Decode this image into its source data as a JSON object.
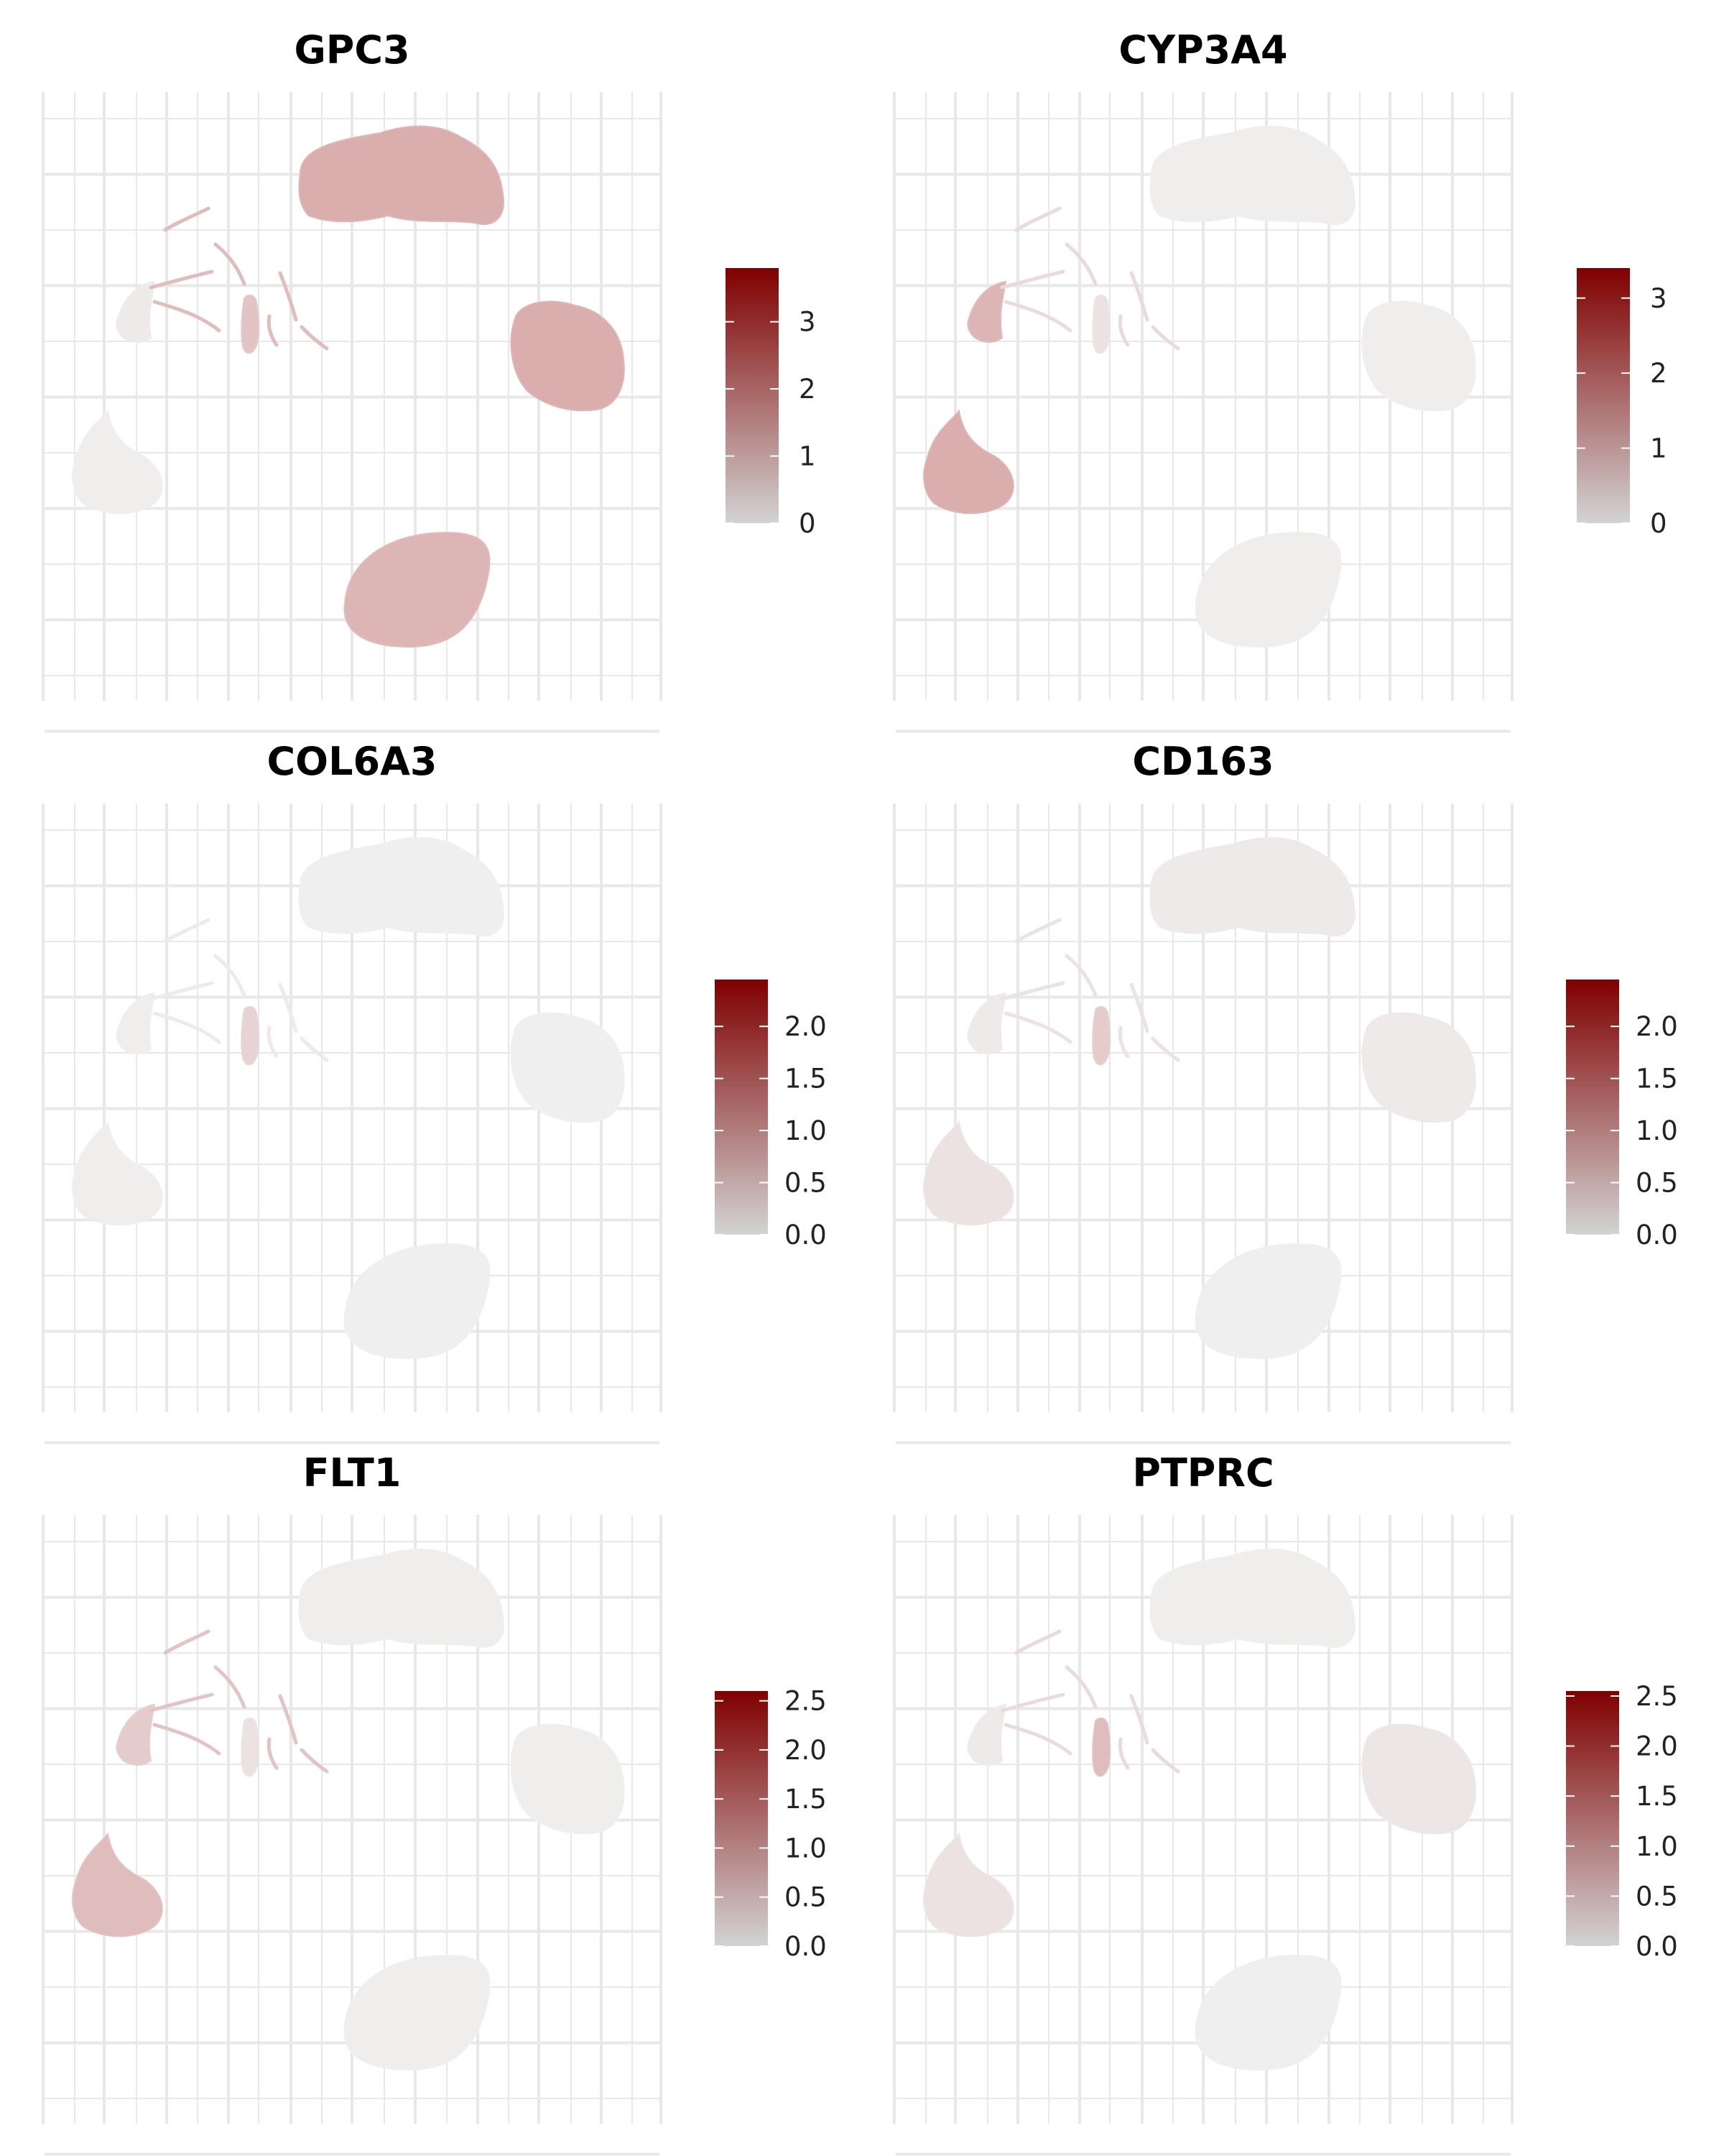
{
  "figure": {
    "colors": {
      "low": "#d3d3d3",
      "high": "#800000",
      "grid": "#e8e8e8",
      "background": "#ffffff"
    }
  },
  "chart_data": [
    {
      "type": "scatter",
      "title": "GPC3",
      "legend": {
        "range": [
          0,
          3.8
        ],
        "ticks": [
          0,
          1,
          2,
          3
        ],
        "tick_labels": [
          "0",
          "1",
          "2",
          "3"
        ]
      },
      "clusters": [
        {
          "name": "top",
          "expression": 0.9
        },
        {
          "name": "right",
          "expression": 0.9
        },
        {
          "name": "bottom",
          "expression": 0.8
        },
        {
          "name": "left",
          "expression": 0.05
        },
        {
          "name": "upper-left",
          "expression": 0.1
        },
        {
          "name": "center-small",
          "expression": 0.6
        },
        {
          "name": "strands",
          "expression": 0.7
        }
      ]
    },
    {
      "type": "scatter",
      "title": "CYP3A4",
      "legend": {
        "range": [
          0,
          3.4
        ],
        "ticks": [
          0,
          1,
          2,
          3
        ],
        "tick_labels": [
          "0",
          "1",
          "2",
          "3"
        ]
      },
      "clusters": [
        {
          "name": "top",
          "expression": 0.05
        },
        {
          "name": "right",
          "expression": 0.05
        },
        {
          "name": "bottom",
          "expression": 0.05
        },
        {
          "name": "left",
          "expression": 0.9
        },
        {
          "name": "upper-left",
          "expression": 0.8
        },
        {
          "name": "center-small",
          "expression": 0.2
        },
        {
          "name": "strands",
          "expression": 0.3
        }
      ]
    },
    {
      "type": "scatter",
      "title": "COL6A3",
      "legend": {
        "range": [
          0,
          2.45
        ],
        "ticks": [
          0,
          0.5,
          1,
          1.5,
          2
        ],
        "tick_labels": [
          "0.0",
          "0.5",
          "1.0",
          "1.5",
          "2.0"
        ]
      },
      "clusters": [
        {
          "name": "top",
          "expression": 0.03
        },
        {
          "name": "right",
          "expression": 0.03
        },
        {
          "name": "bottom",
          "expression": 0.03
        },
        {
          "name": "left",
          "expression": 0.05
        },
        {
          "name": "upper-left",
          "expression": 0.05
        },
        {
          "name": "center-small",
          "expression": 0.4
        },
        {
          "name": "strands",
          "expression": 0.1
        }
      ]
    },
    {
      "type": "scatter",
      "title": "CD163",
      "legend": {
        "range": [
          0,
          2.45
        ],
        "ticks": [
          0,
          0.5,
          1,
          1.5,
          2
        ],
        "tick_labels": [
          "0.0",
          "0.5",
          "1.0",
          "1.5",
          "2.0"
        ]
      },
      "clusters": [
        {
          "name": "top",
          "expression": 0.1
        },
        {
          "name": "right",
          "expression": 0.1
        },
        {
          "name": "bottom",
          "expression": 0.03
        },
        {
          "name": "left",
          "expression": 0.2
        },
        {
          "name": "upper-left",
          "expression": 0.1
        },
        {
          "name": "center-small",
          "expression": 0.5
        },
        {
          "name": "strands",
          "expression": 0.2
        }
      ]
    },
    {
      "type": "scatter",
      "title": "FLT1",
      "legend": {
        "range": [
          0,
          2.6
        ],
        "ticks": [
          0,
          0.5,
          1,
          1.5,
          2,
          2.5
        ],
        "tick_labels": [
          "0.0",
          "0.5",
          "1.0",
          "1.5",
          "2.0",
          "2.5"
        ]
      },
      "clusters": [
        {
          "name": "top",
          "expression": 0.05
        },
        {
          "name": "right",
          "expression": 0.05
        },
        {
          "name": "bottom",
          "expression": 0.05
        },
        {
          "name": "left",
          "expression": 0.7
        },
        {
          "name": "upper-left",
          "expression": 0.5
        },
        {
          "name": "center-small",
          "expression": 0.2
        },
        {
          "name": "strands",
          "expression": 0.6
        }
      ]
    },
    {
      "type": "scatter",
      "title": "PTPRC",
      "legend": {
        "range": [
          0,
          2.55
        ],
        "ticks": [
          0,
          0.5,
          1,
          1.5,
          2,
          2.5
        ],
        "tick_labels": [
          "0.0",
          "0.5",
          "1.0",
          "1.5",
          "2.0",
          "2.5"
        ]
      },
      "clusters": [
        {
          "name": "top",
          "expression": 0.05
        },
        {
          "name": "right",
          "expression": 0.15
        },
        {
          "name": "bottom",
          "expression": 0.03
        },
        {
          "name": "left",
          "expression": 0.2
        },
        {
          "name": "upper-left",
          "expression": 0.1
        },
        {
          "name": "center-small",
          "expression": 0.7
        },
        {
          "name": "strands",
          "expression": 0.3
        }
      ]
    }
  ]
}
